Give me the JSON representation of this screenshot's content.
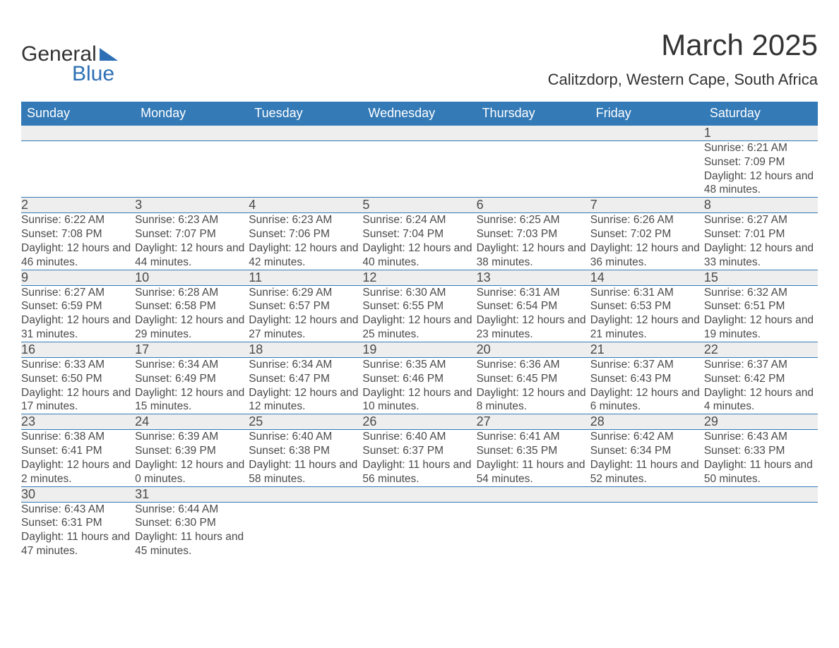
{
  "brand": {
    "part1": "General",
    "part2": "Blue"
  },
  "title": "March 2025",
  "location": "Calitzdorp, Western Cape, South Africa",
  "colors": {
    "header_bg": "#337ab7",
    "header_text": "#ffffff",
    "daynum_bg": "#eeeeee",
    "text": "#4a4a4a",
    "accent": "#2d6fb5",
    "background": "#ffffff"
  },
  "typography": {
    "title_fontsize": 42,
    "location_fontsize": 22,
    "header_fontsize": 18,
    "daynum_fontsize": 18,
    "cell_fontsize": 15.5
  },
  "weekdays": [
    "Sunday",
    "Monday",
    "Tuesday",
    "Wednesday",
    "Thursday",
    "Friday",
    "Saturday"
  ],
  "weeks": [
    [
      null,
      null,
      null,
      null,
      null,
      null,
      {
        "n": "1",
        "sunrise": "6:21 AM",
        "sunset": "7:09 PM",
        "daylight": "12 hours and 48 minutes."
      }
    ],
    [
      {
        "n": "2",
        "sunrise": "6:22 AM",
        "sunset": "7:08 PM",
        "daylight": "12 hours and 46 minutes."
      },
      {
        "n": "3",
        "sunrise": "6:23 AM",
        "sunset": "7:07 PM",
        "daylight": "12 hours and 44 minutes."
      },
      {
        "n": "4",
        "sunrise": "6:23 AM",
        "sunset": "7:06 PM",
        "daylight": "12 hours and 42 minutes."
      },
      {
        "n": "5",
        "sunrise": "6:24 AM",
        "sunset": "7:04 PM",
        "daylight": "12 hours and 40 minutes."
      },
      {
        "n": "6",
        "sunrise": "6:25 AM",
        "sunset": "7:03 PM",
        "daylight": "12 hours and 38 minutes."
      },
      {
        "n": "7",
        "sunrise": "6:26 AM",
        "sunset": "7:02 PM",
        "daylight": "12 hours and 36 minutes."
      },
      {
        "n": "8",
        "sunrise": "6:27 AM",
        "sunset": "7:01 PM",
        "daylight": "12 hours and 33 minutes."
      }
    ],
    [
      {
        "n": "9",
        "sunrise": "6:27 AM",
        "sunset": "6:59 PM",
        "daylight": "12 hours and 31 minutes."
      },
      {
        "n": "10",
        "sunrise": "6:28 AM",
        "sunset": "6:58 PM",
        "daylight": "12 hours and 29 minutes."
      },
      {
        "n": "11",
        "sunrise": "6:29 AM",
        "sunset": "6:57 PM",
        "daylight": "12 hours and 27 minutes."
      },
      {
        "n": "12",
        "sunrise": "6:30 AM",
        "sunset": "6:55 PM",
        "daylight": "12 hours and 25 minutes."
      },
      {
        "n": "13",
        "sunrise": "6:31 AM",
        "sunset": "6:54 PM",
        "daylight": "12 hours and 23 minutes."
      },
      {
        "n": "14",
        "sunrise": "6:31 AM",
        "sunset": "6:53 PM",
        "daylight": "12 hours and 21 minutes."
      },
      {
        "n": "15",
        "sunrise": "6:32 AM",
        "sunset": "6:51 PM",
        "daylight": "12 hours and 19 minutes."
      }
    ],
    [
      {
        "n": "16",
        "sunrise": "6:33 AM",
        "sunset": "6:50 PM",
        "daylight": "12 hours and 17 minutes."
      },
      {
        "n": "17",
        "sunrise": "6:34 AM",
        "sunset": "6:49 PM",
        "daylight": "12 hours and 15 minutes."
      },
      {
        "n": "18",
        "sunrise": "6:34 AM",
        "sunset": "6:47 PM",
        "daylight": "12 hours and 12 minutes."
      },
      {
        "n": "19",
        "sunrise": "6:35 AM",
        "sunset": "6:46 PM",
        "daylight": "12 hours and 10 minutes."
      },
      {
        "n": "20",
        "sunrise": "6:36 AM",
        "sunset": "6:45 PM",
        "daylight": "12 hours and 8 minutes."
      },
      {
        "n": "21",
        "sunrise": "6:37 AM",
        "sunset": "6:43 PM",
        "daylight": "12 hours and 6 minutes."
      },
      {
        "n": "22",
        "sunrise": "6:37 AM",
        "sunset": "6:42 PM",
        "daylight": "12 hours and 4 minutes."
      }
    ],
    [
      {
        "n": "23",
        "sunrise": "6:38 AM",
        "sunset": "6:41 PM",
        "daylight": "12 hours and 2 minutes."
      },
      {
        "n": "24",
        "sunrise": "6:39 AM",
        "sunset": "6:39 PM",
        "daylight": "12 hours and 0 minutes."
      },
      {
        "n": "25",
        "sunrise": "6:40 AM",
        "sunset": "6:38 PM",
        "daylight": "11 hours and 58 minutes."
      },
      {
        "n": "26",
        "sunrise": "6:40 AM",
        "sunset": "6:37 PM",
        "daylight": "11 hours and 56 minutes."
      },
      {
        "n": "27",
        "sunrise": "6:41 AM",
        "sunset": "6:35 PM",
        "daylight": "11 hours and 54 minutes."
      },
      {
        "n": "28",
        "sunrise": "6:42 AM",
        "sunset": "6:34 PM",
        "daylight": "11 hours and 52 minutes."
      },
      {
        "n": "29",
        "sunrise": "6:43 AM",
        "sunset": "6:33 PM",
        "daylight": "11 hours and 50 minutes."
      }
    ],
    [
      {
        "n": "30",
        "sunrise": "6:43 AM",
        "sunset": "6:31 PM",
        "daylight": "11 hours and 47 minutes."
      },
      {
        "n": "31",
        "sunrise": "6:44 AM",
        "sunset": "6:30 PM",
        "daylight": "11 hours and 45 minutes."
      },
      null,
      null,
      null,
      null,
      null
    ]
  ],
  "labels": {
    "sunrise": "Sunrise: ",
    "sunset": "Sunset: ",
    "daylight": "Daylight: "
  }
}
